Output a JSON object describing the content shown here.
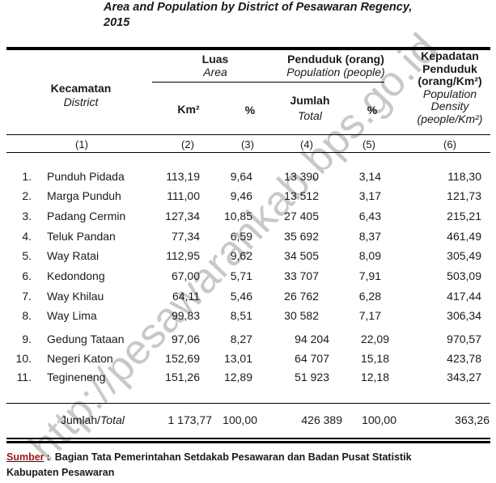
{
  "title": {
    "line1": "Area and Population by District of Pesawaran Regency,",
    "line2": "2015"
  },
  "header": {
    "col_district": {
      "id": "Kecamatan",
      "en": "District"
    },
    "group_area": {
      "id": "Luas",
      "en": "Area"
    },
    "group_population": {
      "id": "Penduduk (orang)",
      "en": "Population (people)"
    },
    "col_km2": "Km²",
    "col_area_pct": "%",
    "col_pop_total": {
      "id": "Jumlah",
      "en": "Total"
    },
    "col_pop_pct": "%",
    "col_density": {
      "id_lines": [
        "Kepadatan",
        "Penduduk",
        "(orang/Km²)"
      ],
      "en_lines": [
        "Population",
        "Density",
        "(people/Km²)"
      ]
    },
    "index_row": [
      "(1)",
      "(2)",
      "(3)",
      "(4)",
      "(5)",
      "(6)"
    ]
  },
  "rows": [
    {
      "no": "1.",
      "district": "Punduh Pidada",
      "area_km2": "113,19",
      "area_pct": "9,64",
      "pop_total": "13 390",
      "pop_pct": "3,14",
      "density": "118,30"
    },
    {
      "no": "2.",
      "district": "Marga Punduh",
      "area_km2": "111,00",
      "area_pct": "9,46",
      "pop_total": "13 512",
      "pop_pct": "3,17",
      "density": "121,73"
    },
    {
      "no": "3.",
      "district": "Padang Cermin",
      "area_km2": "127,34",
      "area_pct": "10,85",
      "pop_total": "27 405",
      "pop_pct": "6,43",
      "density": "215,21"
    },
    {
      "no": "4.",
      "district": "Teluk Pandan",
      "area_km2": "77,34",
      "area_pct": "6,59",
      "pop_total": "35 692",
      "pop_pct": "8,37",
      "density": "461,49"
    },
    {
      "no": "5.",
      "district": "Way Ratai",
      "area_km2": "112,95",
      "area_pct": "9,62",
      "pop_total": "34 505",
      "pop_pct": "8,09",
      "density": "305,49"
    },
    {
      "no": "6.",
      "district": "Kedondong",
      "area_km2": "67,00",
      "area_pct": "5,71",
      "pop_total": "33 707",
      "pop_pct": "7,91",
      "density": "503,09"
    },
    {
      "no": "7.",
      "district": "Way Khilau",
      "area_km2": "64,11",
      "area_pct": "5,46",
      "pop_total": "26 762",
      "pop_pct": "6,28",
      "density": "417,44"
    },
    {
      "no": "8.",
      "district": "Way Lima",
      "area_km2": "99,83",
      "area_pct": "8,51",
      "pop_total": "30 582",
      "pop_pct": "7,17",
      "density": "306,34"
    },
    {
      "no": "9.",
      "district": "Gedung Tataan",
      "area_km2": "97,06",
      "area_pct": "8,27",
      "pop_total": "94 204",
      "pop_pct": "22,09",
      "density": "970,57"
    },
    {
      "no": "10.",
      "district": "Negeri Katon",
      "area_km2": "152,69",
      "area_pct": "13,01",
      "pop_total": "64 707",
      "pop_pct": "15,18",
      "density": "423,78"
    },
    {
      "no": "11.",
      "district": "Tegineneng",
      "area_km2": "151,26",
      "area_pct": "12,89",
      "pop_total": "51 923",
      "pop_pct": "12,18",
      "density": "343,27"
    }
  ],
  "total_row": {
    "label_id": "Jumlah",
    "label_sep": "/",
    "label_en": "Total",
    "area_km2": "1 173,77",
    "area_pct": "100,00",
    "pop_total": "426 389",
    "pop_pct": "100,00",
    "density": "363,26"
  },
  "footer": {
    "source_label": "Sumber",
    "colon": ":",
    "line1": "Bagian Tata Pemerintahan Setdakab Pesawaran dan Badan Pusat Statistik",
    "line2": "Kabupaten Pesawaran"
  },
  "watermark": "http://pesawarankab.bps.go.id"
}
